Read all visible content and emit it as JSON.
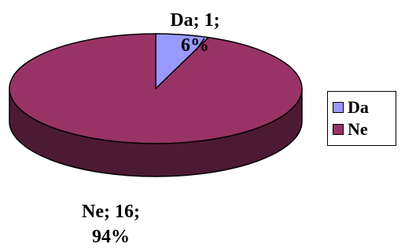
{
  "chart_data": {
    "type": "pie",
    "style": "3d",
    "labels": [
      "Da",
      "Ne"
    ],
    "values": [
      1,
      16
    ],
    "percents": [
      6,
      94
    ],
    "colors": [
      "#9999ff",
      "#993366"
    ],
    "side_colors": [
      "#5c5c99",
      "#4d1a33"
    ],
    "data_labels": [
      {
        "line1": "Da; 1;",
        "line2": "6%"
      },
      {
        "line1": "Ne; 16;",
        "line2": "94%"
      }
    ],
    "legend": {
      "placement": "right",
      "entries": [
        "Da",
        "Ne"
      ]
    }
  }
}
